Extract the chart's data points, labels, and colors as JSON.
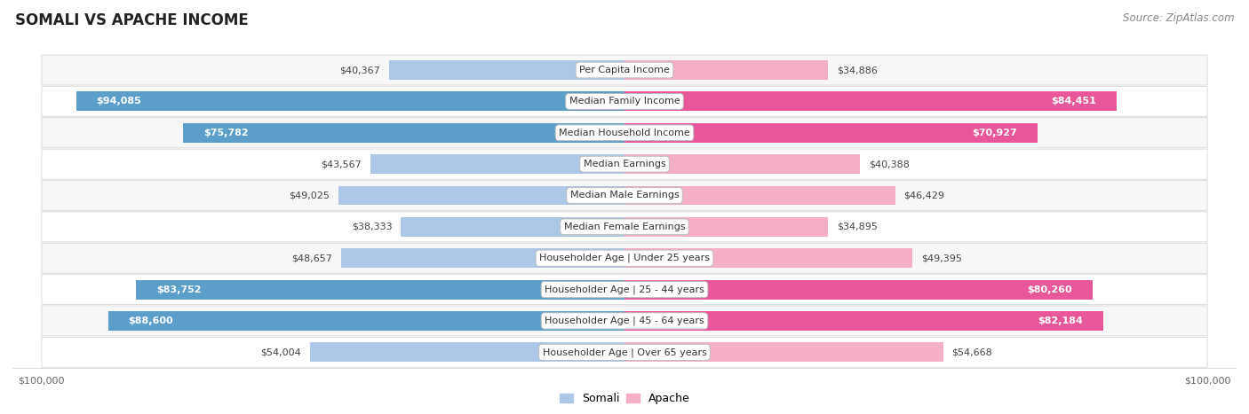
{
  "title": "SOMALI VS APACHE INCOME",
  "source": "Source: ZipAtlas.com",
  "categories": [
    "Per Capita Income",
    "Median Family Income",
    "Median Household Income",
    "Median Earnings",
    "Median Male Earnings",
    "Median Female Earnings",
    "Householder Age | Under 25 years",
    "Householder Age | 25 - 44 years",
    "Householder Age | 45 - 64 years",
    "Householder Age | Over 65 years"
  ],
  "somali_values": [
    40367,
    94085,
    75782,
    43567,
    49025,
    38333,
    48657,
    83752,
    88600,
    54004
  ],
  "apache_values": [
    34886,
    84451,
    70927,
    40388,
    46429,
    34895,
    49395,
    80260,
    82184,
    54668
  ],
  "somali_labels": [
    "$40,367",
    "$94,085",
    "$75,782",
    "$43,567",
    "$49,025",
    "$38,333",
    "$48,657",
    "$83,752",
    "$88,600",
    "$54,004"
  ],
  "apache_labels": [
    "$34,886",
    "$84,451",
    "$70,927",
    "$40,388",
    "$46,429",
    "$34,895",
    "$49,395",
    "$80,260",
    "$82,184",
    "$54,668"
  ],
  "max_value": 100000,
  "somali_color_light": "#adc8e6",
  "somali_color_strong": "#5b9ec9",
  "apache_color_light": "#f5aec8",
  "apache_color_strong": "#e8579a",
  "bg_color": "#ffffff",
  "row_bg_even": "#f7f7f8",
  "row_bg_odd": "#ffffff",
  "row_border_color": "#d8d8d8",
  "title_fontsize": 12,
  "source_fontsize": 8.5,
  "bar_label_fontsize": 8,
  "cat_label_fontsize": 8,
  "axis_fontsize": 8,
  "legend_fontsize": 9,
  "strong_threshold": 65000
}
